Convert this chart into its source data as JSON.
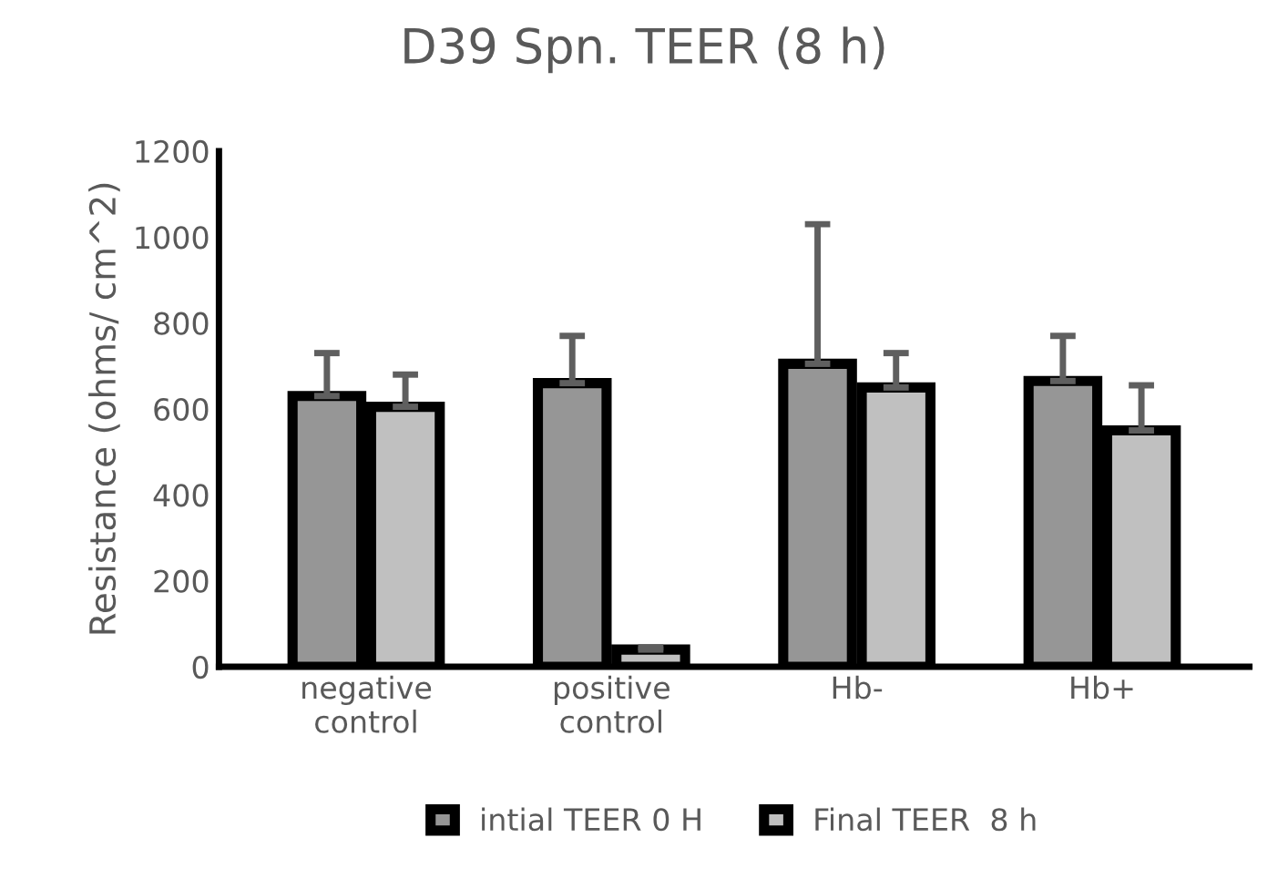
{
  "chart_data": {
    "type": "bar",
    "title": "D39 Spn. TEER (8 h)",
    "ylabel": "Resistance (ohms/ cm^2)",
    "categories": [
      "negative\ncontrol",
      "positive\ncontrol",
      "Hb-",
      "Hb+"
    ],
    "series": [
      {
        "name": "intial TEER 0 H",
        "color": "#969696",
        "values": [
          630,
          660,
          705,
          665
        ],
        "errors": [
          [
            630,
            730
          ],
          [
            660,
            770
          ],
          [
            705,
            1030
          ],
          [
            665,
            770
          ]
        ]
      },
      {
        "name": "Final TEER  8 h",
        "color": "#c0c0c0",
        "values": [
          605,
          40,
          650,
          550
        ],
        "errors": [
          [
            605,
            680
          ],
          [
            40,
            45
          ],
          [
            650,
            730
          ],
          [
            550,
            655
          ]
        ]
      }
    ],
    "ylim": [
      0,
      1200
    ],
    "yticks": [
      0,
      200,
      400,
      600,
      800,
      1000,
      1200
    ],
    "grid": false,
    "legend": "bottom"
  }
}
